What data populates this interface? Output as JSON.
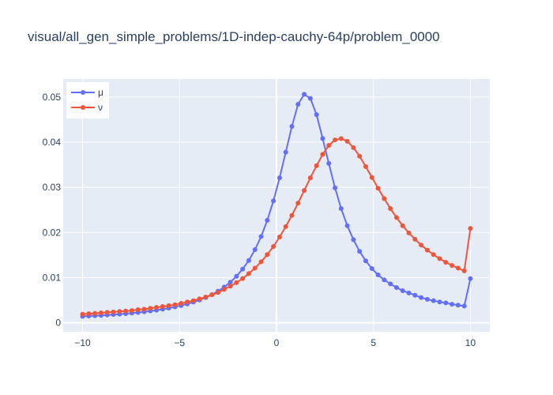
{
  "chart_data": {
    "type": "line",
    "title": "visual/all_gen_simple_problems/1D-indep-cauchy-64p/problem_0000",
    "xlabel": "",
    "ylabel": "",
    "xlim": [
      -11,
      11
    ],
    "ylim": [
      -0.002,
      0.054
    ],
    "x_ticks": [
      -10,
      -5,
      0,
      5,
      10
    ],
    "x_tick_labels": [
      "−10",
      "−5",
      "0",
      "5",
      "10"
    ],
    "y_ticks": [
      0,
      0.01,
      0.02,
      0.03,
      0.04,
      0.05
    ],
    "y_tick_labels": [
      "0",
      "0.01",
      "0.02",
      "0.03",
      "0.04",
      "0.05"
    ],
    "grid": true,
    "legend_position": "top-left",
    "background_color": "#e5ecf6",
    "x_start": -10,
    "x_end": 10,
    "n_points": 64,
    "series": [
      {
        "name": "μ",
        "color": "#636efa",
        "values": [
          0.00142,
          0.00149,
          0.00156,
          0.00164,
          0.00173,
          0.00182,
          0.00192,
          0.00203,
          0.00215,
          0.00229,
          0.00244,
          0.00261,
          0.00279,
          0.00301,
          0.00325,
          0.00352,
          0.00382,
          0.00417,
          0.00458,
          0.00504,
          0.00559,
          0.00623,
          0.00699,
          0.0079,
          0.00898,
          0.0103,
          0.0119,
          0.0138,
          0.0162,
          0.0191,
          0.0227,
          0.027,
          0.0321,
          0.0378,
          0.0435,
          0.0484,
          0.0506,
          0.0497,
          0.0461,
          0.0408,
          0.0353,
          0.0299,
          0.0253,
          0.0215,
          0.0184,
          0.0158,
          0.0137,
          0.012,
          0.0106,
          0.0095,
          0.0086,
          0.0078,
          0.0071,
          0.0066,
          0.0061,
          0.0056,
          0.0052,
          0.0049,
          0.0046,
          0.0044,
          0.0041,
          0.0039,
          0.0037,
          0.0098
        ]
      },
      {
        "name": "ν",
        "color": "#ef553b",
        "values": [
          0.0019,
          0.002,
          0.0021,
          0.0022,
          0.0023,
          0.0024,
          0.0025,
          0.0026,
          0.0027,
          0.0029,
          0.003,
          0.0032,
          0.0034,
          0.0036,
          0.0038,
          0.004,
          0.0043,
          0.0046,
          0.0049,
          0.0053,
          0.0057,
          0.0062,
          0.0067,
          0.0074,
          0.0081,
          0.0089,
          0.0098,
          0.0109,
          0.0121,
          0.0135,
          0.0151,
          0.0169,
          0.019,
          0.0213,
          0.0238,
          0.0265,
          0.0293,
          0.0321,
          0.0348,
          0.0373,
          0.0393,
          0.0405,
          0.0408,
          0.0402,
          0.0388,
          0.0369,
          0.0346,
          0.0322,
          0.0298,
          0.0275,
          0.0253,
          0.0233,
          0.0215,
          0.0199,
          0.0185,
          0.0172,
          0.0161,
          0.0151,
          0.0142,
          0.0134,
          0.0127,
          0.0121,
          0.0115,
          0.0209
        ]
      }
    ]
  }
}
